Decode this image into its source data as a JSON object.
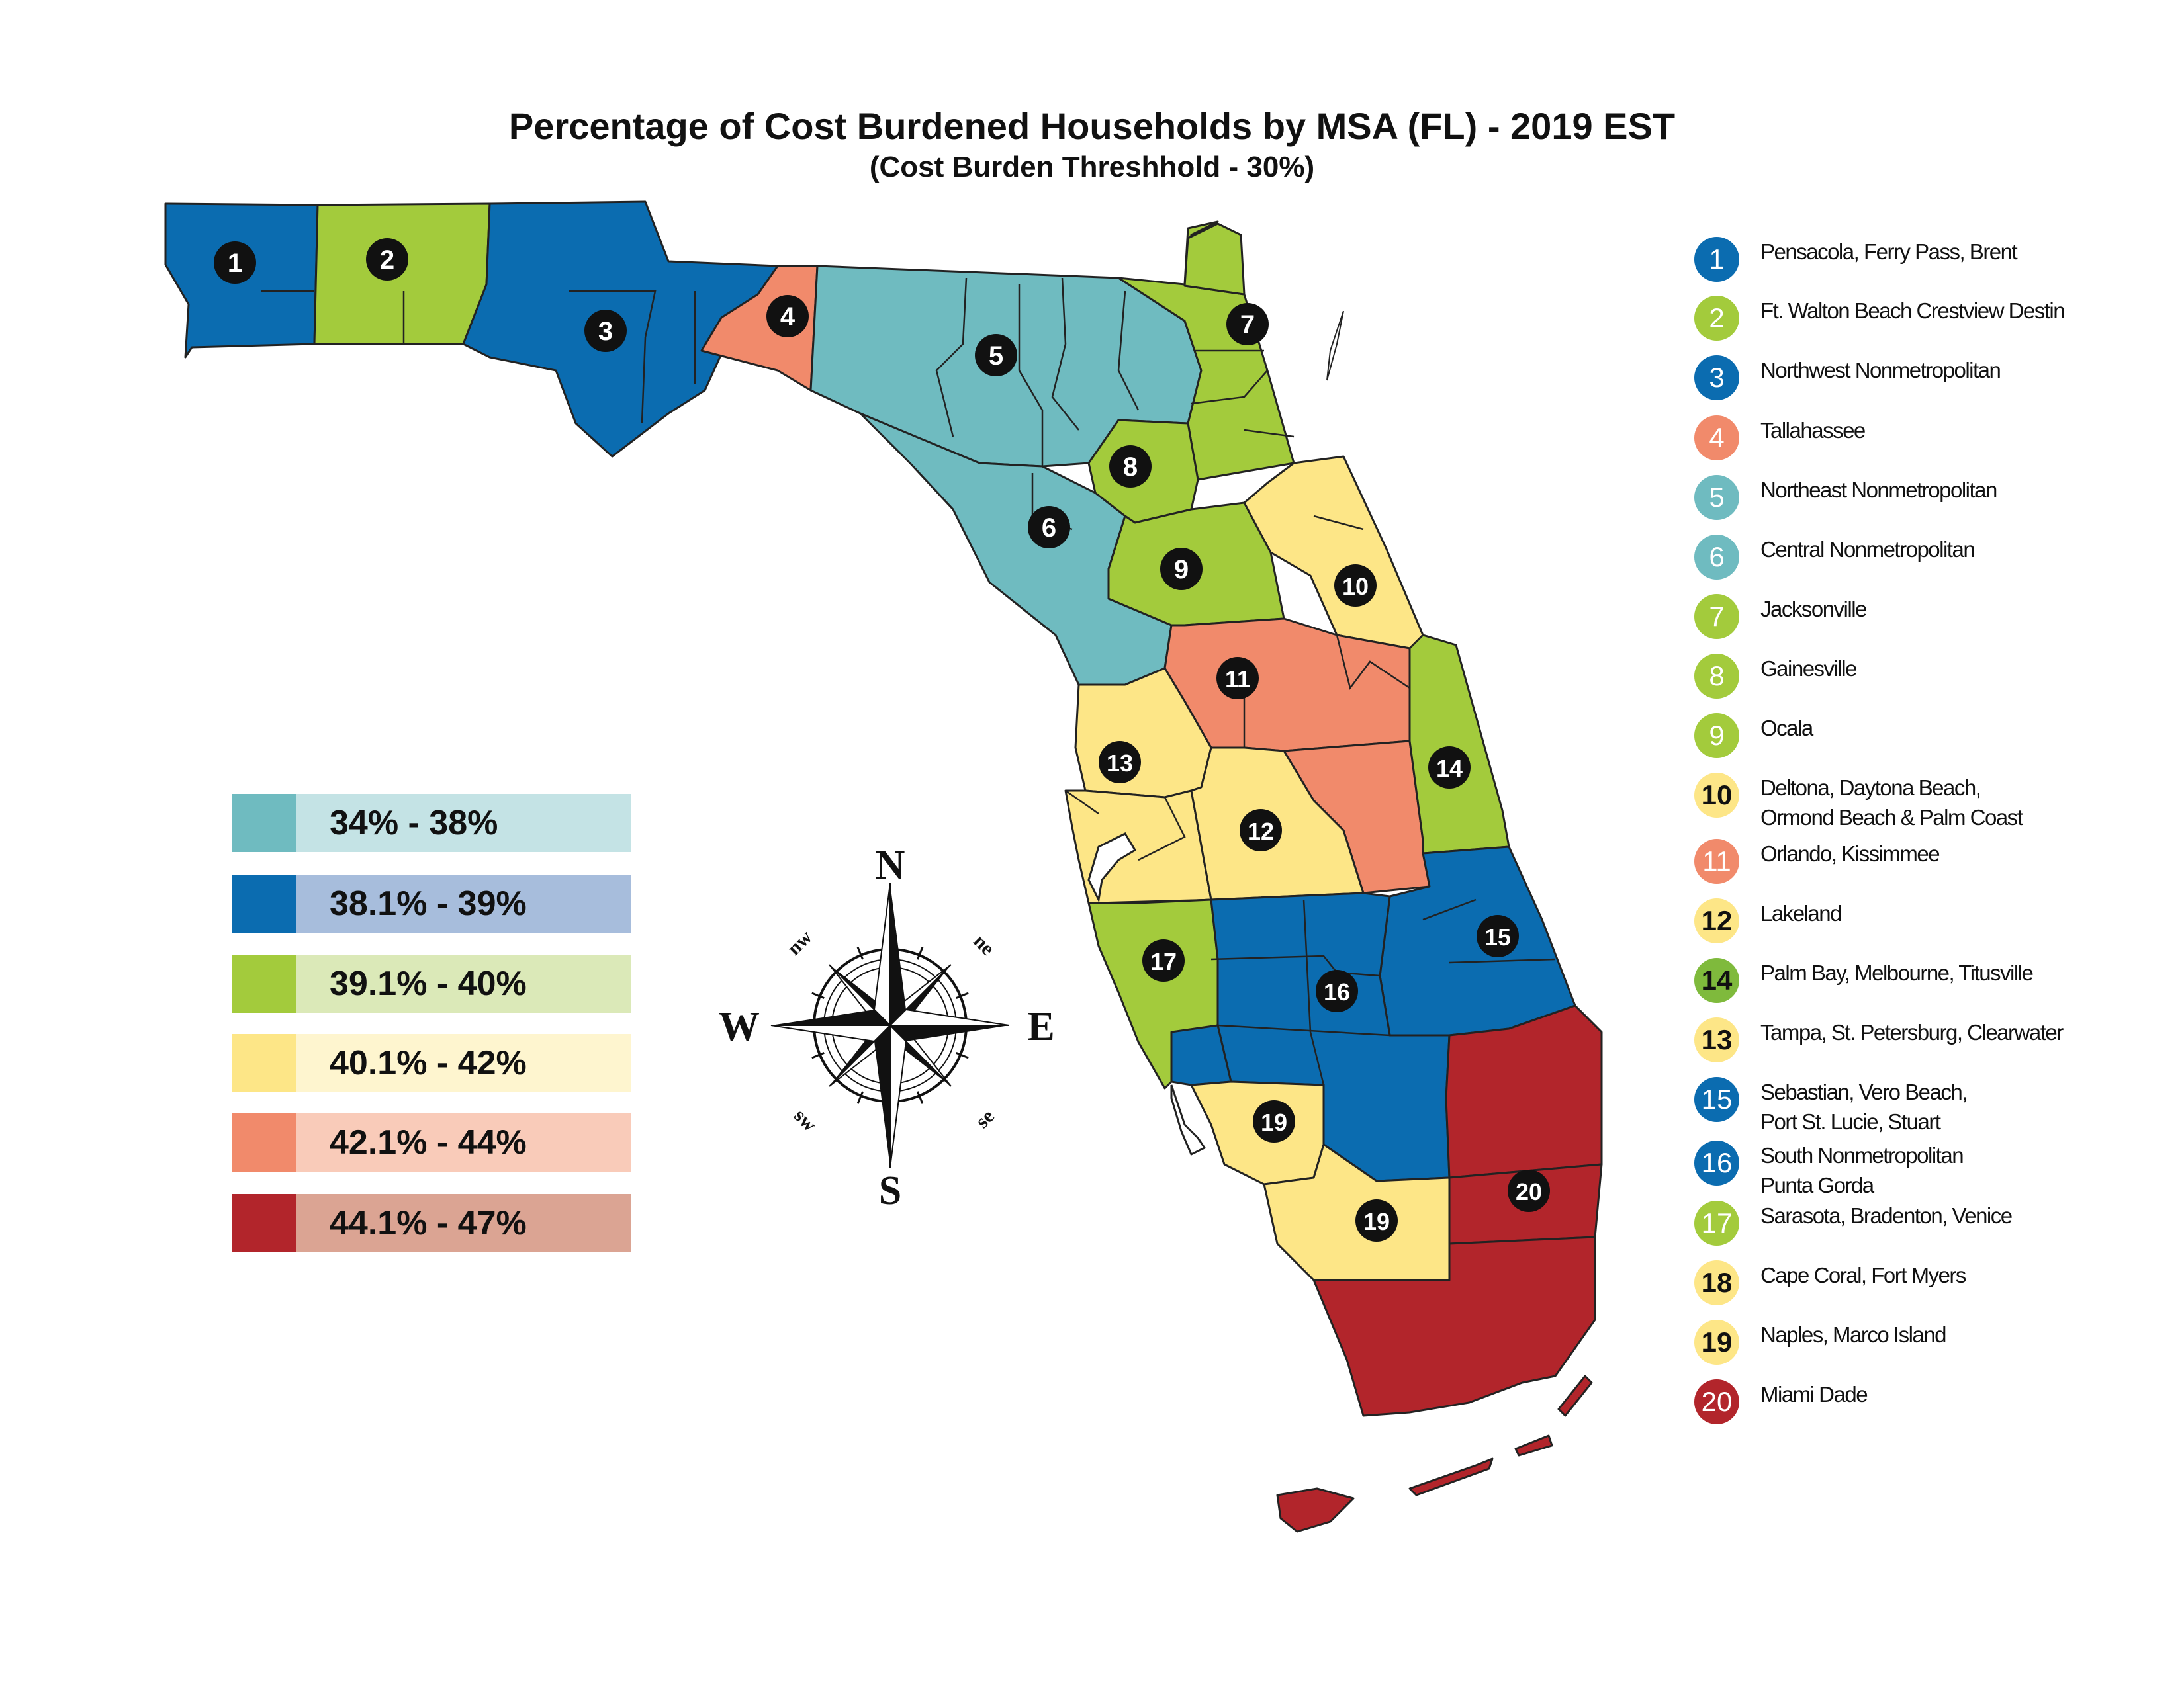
{
  "title": "Percentage of Cost Burdened Households by MSA (FL) - 2019 EST",
  "subtitle": "(Cost Burden Threshhold - 30%)",
  "colors": {
    "c1": "#6fbbc0",
    "c2": "#0b6cb0",
    "c3": "#a3cb3c",
    "c4": "#fde687",
    "c5": "#f18a6b",
    "c6": "#b2252b"
  },
  "legend": [
    {
      "label": "34% - 38%",
      "swatch": "#6fbbc0",
      "bg": "#c4e3e5"
    },
    {
      "label": "38.1% - 39%",
      "swatch": "#0b6cb0",
      "bg": "#a7bddc"
    },
    {
      "label": "39.1% - 40%",
      "swatch": "#a3cb3c",
      "bg": "#dbe9b8"
    },
    {
      "label": "40.1% - 42%",
      "swatch": "#fde687",
      "bg": "#fef5cf"
    },
    {
      "label": "42.1% - 44%",
      "swatch": "#f18a6b",
      "bg": "#f9cbb9"
    },
    {
      "label": "44.1% - 47%",
      "swatch": "#b2252b",
      "bg": "#dba493"
    }
  ],
  "compass": {
    "n": "N",
    "s": "S",
    "e": "E",
    "w": "W",
    "nw": "nw",
    "ne": "ne",
    "sw": "sw",
    "se": "se"
  },
  "msa_key": [
    {
      "num": "1",
      "name": "Pensacola, Ferry Pass, Brent",
      "color": "#0b6cb0"
    },
    {
      "num": "2",
      "name": "Ft. Walton Beach Crestview Destin",
      "color": "#a3cb3c"
    },
    {
      "num": "3",
      "name": "Northwest Nonmetropolitan",
      "color": "#0b6cb0"
    },
    {
      "num": "4",
      "name": "Tallahassee",
      "color": "#f18a6b"
    },
    {
      "num": "5",
      "name": "Northeast Nonmetropolitan",
      "color": "#6fbbc0"
    },
    {
      "num": "6",
      "name": "Central Nonmetropolitan",
      "color": "#6fbbc0"
    },
    {
      "num": "7",
      "name": "Jacksonville",
      "color": "#a3cb3c"
    },
    {
      "num": "8",
      "name": "Gainesville",
      "color": "#a3cb3c"
    },
    {
      "num": "9",
      "name": "Ocala",
      "color": "#a3cb3c"
    },
    {
      "num": "10",
      "name": "Deltona, Daytona Beach,\nOrmond Beach & Palm Coast",
      "color": "#fde687"
    },
    {
      "num": "11",
      "name": "Orlando, Kissimmee",
      "color": "#f18a6b"
    },
    {
      "num": "12",
      "name": "Lakeland",
      "color": "#fde687"
    },
    {
      "num": "14",
      "name": "Palm Bay, Melbourne, Titusville",
      "color": "#7fba3c"
    },
    {
      "num": "13",
      "name": "Tampa, St. Petersburg, Clearwater",
      "color": "#fde687"
    },
    {
      "num": "15",
      "name": "Sebastian, Vero Beach,\nPort St. Lucie, Stuart",
      "color": "#0b6cb0"
    },
    {
      "num": "16",
      "name": "South Nonmetropolitan\nPunta Gorda",
      "color": "#0b6cb0"
    },
    {
      "num": "17",
      "name": "Sarasota, Bradenton, Venice",
      "color": "#a3cb3c"
    },
    {
      "num": "18",
      "name": "Cape Coral, Fort Myers",
      "color": "#fde687"
    },
    {
      "num": "19",
      "name": "Naples, Marco Island",
      "color": "#fde687"
    },
    {
      "num": "20",
      "name": "Miami Dade",
      "color": "#b2252b"
    }
  ],
  "map_labels": [
    {
      "num": "1"
    },
    {
      "num": "2"
    },
    {
      "num": "3"
    },
    {
      "num": "4"
    },
    {
      "num": "5"
    },
    {
      "num": "6"
    },
    {
      "num": "7"
    },
    {
      "num": "8"
    },
    {
      "num": "9"
    },
    {
      "num": "10"
    },
    {
      "num": "11"
    },
    {
      "num": "12"
    },
    {
      "num": "13"
    },
    {
      "num": "14"
    },
    {
      "num": "15"
    },
    {
      "num": "16"
    },
    {
      "num": "17"
    },
    {
      "num": "19"
    },
    {
      "num": "19"
    },
    {
      "num": "20"
    }
  ]
}
